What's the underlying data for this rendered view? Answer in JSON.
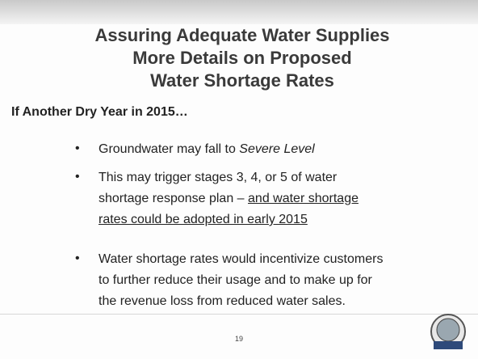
{
  "title": [
    "Assuring Adequate Water Supplies",
    "More Details on Proposed",
    "Water Shortage Rates"
  ],
  "subheading": "If Another Dry Year in 2015…",
  "bullets": [
    {
      "lines": [
        [
          {
            "text": "Groundwater may fall to "
          },
          {
            "text": "Severe Level",
            "style": "italic"
          }
        ]
      ]
    },
    {
      "lines": [
        [
          {
            "text": "This may trigger stages 3, 4, or 5 of water"
          }
        ],
        [
          {
            "text": "shortage response plan – "
          },
          {
            "text": "and water shortage",
            "style": "underline"
          }
        ],
        [
          {
            "text": "rates could be adopted in early 2015",
            "style": "underline"
          }
        ]
      ]
    },
    {
      "lines": [
        [
          {
            "text": "Water shortage rates would incentivize customers"
          }
        ],
        [
          {
            "text": "to further reduce their usage and to make up for"
          }
        ],
        [
          {
            "text": "the revenue loss from reduced water sales."
          }
        ]
      ]
    }
  ],
  "page_number": "19"
}
